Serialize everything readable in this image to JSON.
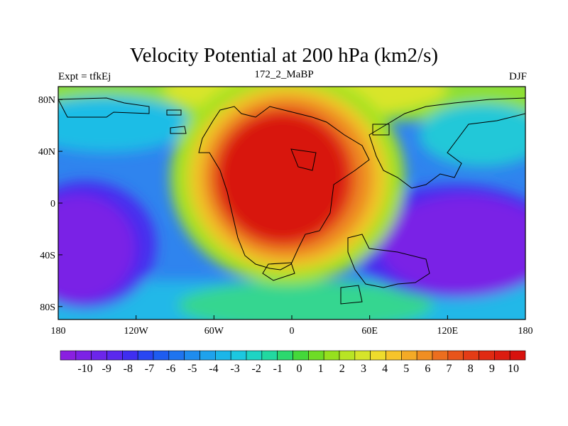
{
  "title": "Velocity Potential at 200 hPa (km2/s)",
  "left_label": "Expt = tfkEj",
  "center_label": "172_2_MaBP",
  "right_label": "DJF",
  "x_ticks": [
    "180",
    "120W",
    "60W",
    "0",
    "60E",
    "120E",
    "180"
  ],
  "y_ticks": [
    "80N",
    "40N",
    "0",
    "40S",
    "80S"
  ],
  "colorbar": {
    "labels": [
      "-10",
      "-9",
      "-8",
      "-7",
      "-6",
      "-5",
      "-4",
      "-3",
      "-2",
      "-1",
      "0",
      "1",
      "2",
      "3",
      "4",
      "5",
      "6",
      "7",
      "8",
      "9",
      "10"
    ],
    "colors": [
      "#8a1fe0",
      "#7c22e6",
      "#6c25ea",
      "#5a28ee",
      "#3f2ef0",
      "#2846f2",
      "#1e5cf0",
      "#1f74ef",
      "#1f8cee",
      "#1ea2ec",
      "#1cb6e8",
      "#1cc8e0",
      "#1ed4c4",
      "#22d8a0",
      "#2cd86e",
      "#44d83a",
      "#6edc26",
      "#96e01e",
      "#b8e424",
      "#d6e42a",
      "#eedc2c",
      "#f6c42a",
      "#f4aa26",
      "#f08e22",
      "#ec6e1e",
      "#e8541a",
      "#e43c16",
      "#e02a12",
      "#dc1c10",
      "#d8120e"
    ]
  },
  "chart_data": {
    "type": "heatmap",
    "title": "Velocity Potential at 200 hPa (km2/s)",
    "units": "km2/s",
    "xrange": [
      -180,
      180
    ],
    "yrange": [
      -90,
      90
    ],
    "color_min": -10,
    "color_max": 10,
    "features": [
      {
        "name": "positive center",
        "lon": -15,
        "lat": 12,
        "value": 10
      },
      {
        "name": "negative center west pacific",
        "lon": 150,
        "lat": -30,
        "value": -10
      },
      {
        "name": "negative center east pacific",
        "lon": -165,
        "lat": -30,
        "value": -10
      }
    ]
  }
}
